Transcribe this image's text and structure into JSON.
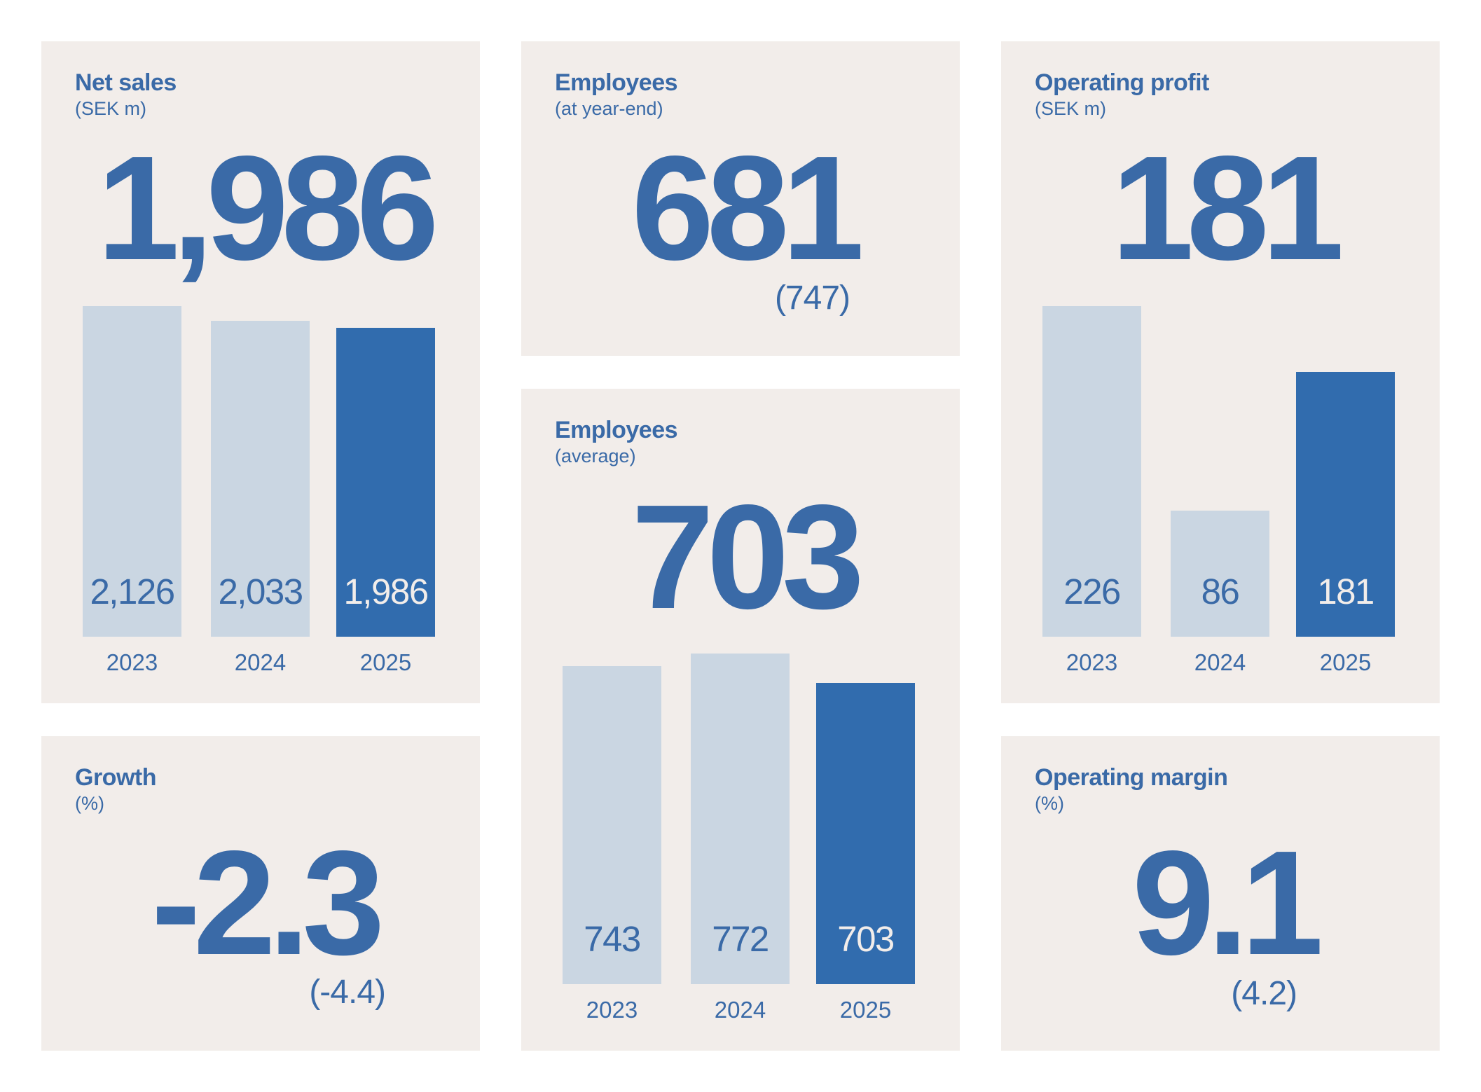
{
  "colors": {
    "text_blue": "#3A6AA7",
    "bar_current": "#316CAE",
    "bar_previous": "#CAD6E2",
    "card_background": "#F2EDEA",
    "page_background": "#FFFFFF"
  },
  "cards": {
    "net_sales": {
      "title": "Net sales",
      "unit": "(SEK m)",
      "value": "1,986"
    },
    "employees_year_end": {
      "title": "Employees",
      "unit": "(at year-end)",
      "value": "681",
      "previous": "(747)"
    },
    "employees_average": {
      "title": "Employees",
      "unit": "(average)",
      "value": "703"
    },
    "operating_profit": {
      "title": "Operating profit",
      "unit": "(SEK m)",
      "value": "181"
    },
    "growth": {
      "title": "Growth",
      "unit": "(%)",
      "value": "-2.3",
      "previous": "(-4.4)"
    },
    "operating_margin": {
      "title": "Operating margin",
      "unit": "(%)",
      "value": "9.1",
      "previous": "(4.2)"
    }
  },
  "chart_data": [
    {
      "type": "bar",
      "title": "Net sales",
      "subtitle": "(SEK m)",
      "headline": "1,986",
      "categories": [
        "2023",
        "2024",
        "2025"
      ],
      "values": [
        2126,
        2033,
        1986
      ],
      "labels": [
        "2,126",
        "2,033",
        "1,986"
      ],
      "highlight_index": 2,
      "xlabel": "",
      "ylabel": "",
      "grid": false,
      "legend": null
    },
    {
      "type": "bar",
      "title": "Employees",
      "subtitle": "(average)",
      "headline": "703",
      "categories": [
        "2023",
        "2024",
        "2025"
      ],
      "values": [
        743,
        772,
        703
      ],
      "labels": [
        "743",
        "772",
        "703"
      ],
      "highlight_index": 2,
      "xlabel": "",
      "ylabel": "",
      "grid": false,
      "legend": null
    },
    {
      "type": "bar",
      "title": "Operating profit",
      "subtitle": "(SEK m)",
      "headline": "181",
      "categories": [
        "2023",
        "2024",
        "2025"
      ],
      "values": [
        226,
        86,
        181
      ],
      "labels": [
        "226",
        "86",
        "181"
      ],
      "highlight_index": 2,
      "xlabel": "",
      "ylabel": "",
      "grid": false,
      "legend": null
    },
    {
      "type": "table",
      "title": "Key figures (no chart)",
      "rows": [
        {
          "label": "Employees (at year-end)",
          "value": 681,
          "previous": 747
        },
        {
          "label": "Growth (%)",
          "value": -2.3,
          "previous": -4.4
        },
        {
          "label": "Operating margin (%)",
          "value": 9.1,
          "previous": 4.2
        }
      ]
    }
  ]
}
